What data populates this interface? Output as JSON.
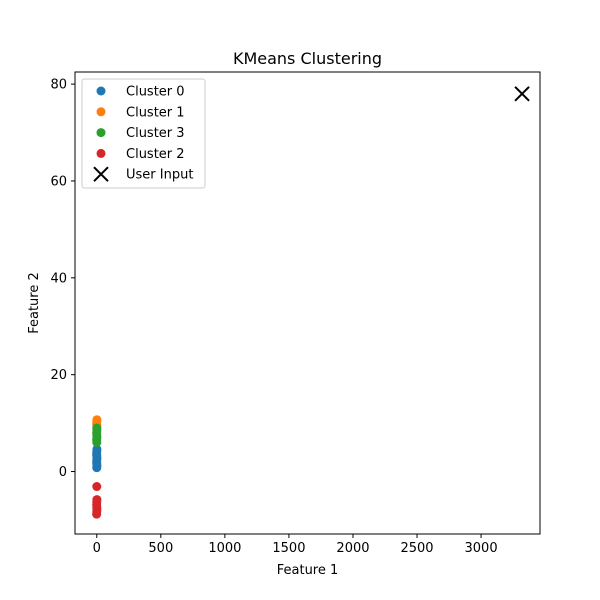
{
  "chart_data": {
    "type": "scatter",
    "title": "KMeans Clustering",
    "xlabel": "Feature 1",
    "ylabel": "Feature 2",
    "xlim": [
      -170,
      3460
    ],
    "ylim": [
      -12.9,
      82.5
    ],
    "xticks": [
      0,
      500,
      1000,
      1500,
      2000,
      2500,
      3000
    ],
    "yticks": [
      0,
      20,
      40,
      60,
      80
    ],
    "grid": false,
    "legend_position": "top-left",
    "series": [
      {
        "name": "Cluster 0",
        "color": "#1f77b4",
        "marker": "circle",
        "points": [
          [
            0,
            0.8
          ],
          [
            1,
            1.2
          ],
          [
            0,
            1.6
          ],
          [
            -1,
            2.0
          ],
          [
            0,
            2.4
          ],
          [
            1,
            2.8
          ],
          [
            0,
            3.2
          ],
          [
            -1,
            3.6
          ],
          [
            0,
            4.1
          ],
          [
            1,
            4.6
          ]
        ]
      },
      {
        "name": "Cluster 1",
        "color": "#ff7f0e",
        "marker": "circle",
        "points": [
          [
            0,
            8.8
          ],
          [
            1,
            9.3
          ],
          [
            -1,
            9.8
          ],
          [
            0,
            10.3
          ],
          [
            1,
            10.7
          ]
        ]
      },
      {
        "name": "Cluster 3",
        "color": "#2ca02c",
        "marker": "circle",
        "points": [
          [
            0,
            6.0
          ],
          [
            -1,
            6.5
          ],
          [
            1,
            7.0
          ],
          [
            0,
            7.5
          ],
          [
            -1,
            8.0
          ],
          [
            1,
            8.5
          ],
          [
            0,
            9.0
          ]
        ]
      },
      {
        "name": "Cluster 2",
        "color": "#d62728",
        "marker": "circle",
        "points": [
          [
            0,
            -3.1
          ],
          [
            1,
            -5.8
          ],
          [
            0,
            -6.3
          ],
          [
            -1,
            -6.8
          ],
          [
            0,
            -7.3
          ],
          [
            1,
            -7.8
          ],
          [
            0,
            -8.3
          ],
          [
            -1,
            -8.8
          ]
        ]
      },
      {
        "name": "User Input",
        "color": "#000000",
        "marker": "x",
        "points": [
          [
            3320,
            78
          ]
        ]
      }
    ]
  }
}
